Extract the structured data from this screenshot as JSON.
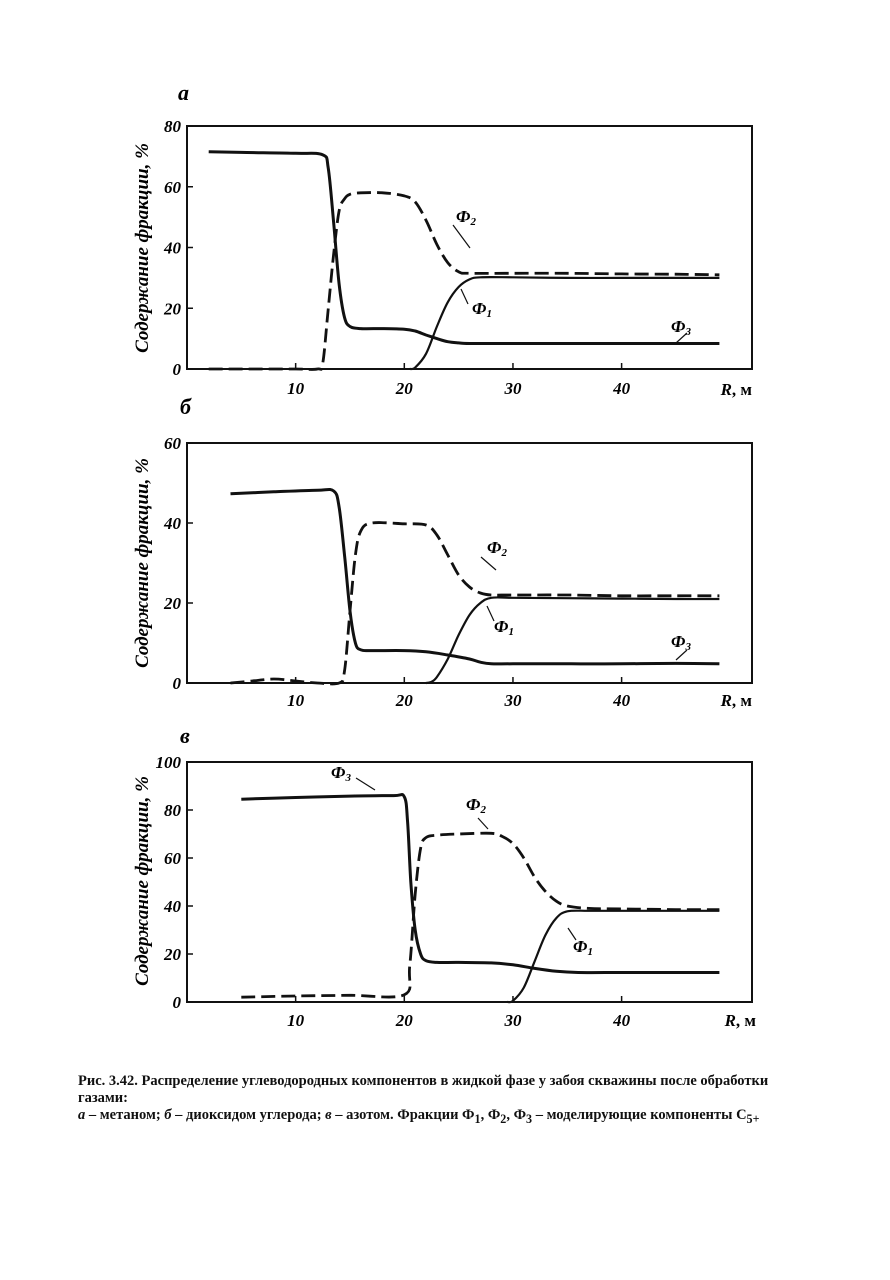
{
  "chart_data": [
    {
      "type": "line",
      "panel_label": "а",
      "ylabel": "Содержание фракции, %",
      "xlabel_var": "R",
      "xlabel_unit": ", м",
      "xlim": [
        0,
        52
      ],
      "ylim": [
        0,
        80
      ],
      "xticks": [
        10,
        20,
        30,
        40
      ],
      "yticks": [
        0,
        20,
        40,
        60,
        80
      ],
      "series": [
        {
          "name": "Ф1",
          "label_main": "Ф",
          "label_sub": "1",
          "style": "solid",
          "x": [
            20.5,
            21,
            22,
            23,
            24,
            25,
            26,
            27,
            30,
            35,
            40,
            45,
            49
          ],
          "y": [
            0,
            0.5,
            5,
            14,
            22,
            27,
            29.5,
            30.2,
            30.2,
            30,
            30,
            30,
            30
          ]
        },
        {
          "name": "Ф2",
          "label_main": "Ф",
          "label_sub": "2",
          "style": "dashed",
          "x": [
            2,
            5,
            10,
            12,
            12.5,
            13,
            13.5,
            14,
            14.5,
            15,
            16,
            18,
            20,
            21,
            22,
            23,
            24,
            25,
            26,
            30,
            35,
            40,
            45,
            49
          ],
          "y": [
            0,
            0,
            0,
            0,
            2,
            20,
            38,
            52,
            56,
            57.5,
            58,
            58,
            57,
            55,
            49,
            41,
            35,
            32,
            31.5,
            31.5,
            31.5,
            31.3,
            31.2,
            31
          ]
        },
        {
          "name": "Ф3",
          "label_main": "Ф",
          "label_sub": "3",
          "style": "solid",
          "x": [
            2,
            5,
            10,
            12.5,
            13,
            13.5,
            14,
            14.5,
            15,
            16,
            18,
            20,
            21,
            22,
            23,
            24,
            25,
            26,
            30,
            35,
            40,
            45,
            49
          ],
          "y": [
            71.5,
            71.3,
            71,
            70.5,
            66,
            48,
            28,
            17,
            14,
            13.3,
            13.3,
            13.1,
            12.5,
            11.2,
            10,
            9,
            8.6,
            8.4,
            8.4,
            8.4,
            8.4,
            8.4,
            8.4
          ]
        }
      ]
    },
    {
      "type": "line",
      "panel_label": "б",
      "ylabel": "Содержание фракции, %",
      "xlabel_var": "R",
      "xlabel_unit": ", м",
      "xlim": [
        0,
        52
      ],
      "ylim": [
        0,
        60
      ],
      "xticks": [
        10,
        20,
        30,
        40
      ],
      "yticks": [
        0,
        20,
        40,
        60
      ],
      "series": [
        {
          "name": "Ф1",
          "label_main": "Ф",
          "label_sub": "1",
          "style": "solid",
          "x": [
            22,
            22.5,
            23,
            24,
            25,
            26,
            27,
            28,
            30,
            35,
            40,
            45,
            49
          ],
          "y": [
            0,
            0.3,
            1.5,
            6,
            12,
            17,
            20,
            21.3,
            21.3,
            21.2,
            21.1,
            21,
            21
          ]
        },
        {
          "name": "Ф2",
          "label_main": "Ф",
          "label_sub": "2",
          "style": "dashed",
          "x": [
            4,
            6,
            8,
            10,
            12,
            14,
            14.5,
            15,
            15.5,
            16,
            17,
            20,
            22,
            23,
            24,
            25,
            26,
            27,
            28,
            30,
            35,
            40,
            45,
            49
          ],
          "y": [
            0,
            0.5,
            1,
            0.5,
            0,
            0,
            3,
            18,
            32,
            38,
            40,
            39.8,
            39.5,
            37,
            32,
            27,
            24,
            22.5,
            22,
            22,
            22,
            21.8,
            21.8,
            21.8
          ]
        },
        {
          "name": "Ф3",
          "label_main": "Ф",
          "label_sub": "3",
          "style": "solid",
          "x": [
            4,
            8,
            12,
            13.5,
            14,
            14.5,
            15,
            15.5,
            16,
            17,
            20,
            22,
            24,
            26,
            27,
            28,
            30,
            35,
            40,
            45,
            49
          ],
          "y": [
            47.3,
            47.8,
            48.2,
            48,
            44,
            32,
            18,
            10,
            8.3,
            8.1,
            8.1,
            7.8,
            7,
            6,
            5.2,
            4.8,
            4.8,
            4.8,
            4.8,
            4.9,
            4.8
          ]
        }
      ]
    },
    {
      "type": "line",
      "panel_label": "в",
      "ylabel": "Содержание фракции, %",
      "xlabel_var": "R",
      "xlabel_unit": ", м",
      "xlim": [
        0,
        52
      ],
      "ylim": [
        0,
        100
      ],
      "xticks": [
        10,
        20,
        30,
        40
      ],
      "yticks": [
        0,
        20,
        40,
        60,
        80,
        100
      ],
      "series": [
        {
          "name": "Ф1",
          "label_main": "Ф",
          "label_sub": "1",
          "style": "solid",
          "x": [
            29.5,
            30,
            31,
            32,
            33,
            34,
            35,
            37,
            40,
            45,
            49
          ],
          "y": [
            0,
            0.5,
            6,
            17,
            28,
            35,
            37.8,
            38,
            38,
            38,
            38
          ]
        },
        {
          "name": "Ф2",
          "label_main": "Ф",
          "label_sub": "2",
          "style": "dashed",
          "x": [
            5,
            10,
            15,
            20,
            20.5,
            21,
            21.5,
            22,
            23,
            25,
            28,
            29,
            30,
            31,
            32,
            33,
            34,
            35,
            37,
            40,
            45,
            49
          ],
          "y": [
            2,
            2.5,
            2.8,
            3,
            15,
            45,
            64,
            68.5,
            69.5,
            70,
            70.3,
            69,
            66,
            60,
            52,
            46,
            42,
            40,
            39,
            38.8,
            38.5,
            38.5
          ]
        },
        {
          "name": "Ф3",
          "label_main": "Ф",
          "label_sub": "3",
          "style": "solid",
          "x": [
            5,
            10,
            15,
            19,
            20,
            20.3,
            20.6,
            21,
            21.5,
            22,
            23,
            25,
            28,
            30,
            32,
            34,
            36,
            40,
            45,
            49
          ],
          "y": [
            84.5,
            85.2,
            85.8,
            86,
            85.5,
            75,
            50,
            30,
            20,
            17.2,
            16.5,
            16.5,
            16.3,
            15.5,
            14,
            12.8,
            12.3,
            12.3,
            12.3,
            12.3
          ]
        }
      ]
    }
  ],
  "caption": {
    "title": "Рис. 3.42. Распределение углеводородных компонентов в жидкой фазе у забоя скважины после обработки газами:",
    "desc_1": "а",
    "desc_2": " – метаном; ",
    "desc_3": "б",
    "desc_4": " – диоксидом углерода; ",
    "desc_5": "в",
    "desc_6": " – азотом. Фракции Ф",
    "sub_1": "1",
    "desc_7": ", Ф",
    "sub_2": "2",
    "desc_8": ", Ф",
    "sub_3": "3",
    "desc_9": " – моделирующие компоненты С",
    "sub_4": "5+"
  }
}
